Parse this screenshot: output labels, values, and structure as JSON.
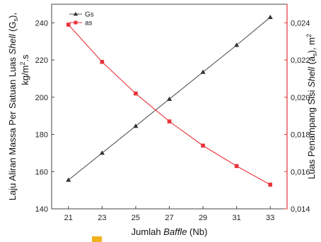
{
  "chart_data": {
    "type": "line",
    "x": [
      21,
      23,
      25,
      27,
      29,
      31,
      33
    ],
    "xlabel": {
      "prefix": "Jumlah ",
      "italic": "Baffle",
      "suffix": " (Nb)"
    },
    "xlim": [
      20,
      34
    ],
    "xticks": [
      "21",
      "23",
      "25",
      "27",
      "29",
      "31",
      "33"
    ],
    "ylabel_left": {
      "line1": {
        "a": "Laju Aliran Massa Per Satuan Luas ",
        "italic": "Shell",
        "b": " (G",
        "sub": "s",
        "c": "),"
      },
      "line2": {
        "a": "kg/m",
        "sup": "2",
        "b": ".s"
      }
    },
    "ylim_left": [
      140,
      250
    ],
    "yticks_left": [
      "140",
      "160",
      "180",
      "200",
      "220",
      "240"
    ],
    "ylabel_right": {
      "a": "Luas Penampang Sisi ",
      "italic": "Shell",
      "b": " (a",
      "sub": "s",
      "c": "), m",
      "sup": "2"
    },
    "ylim_right": [
      0.014,
      0.025
    ],
    "yticks_right": [
      "0,014",
      "0,016",
      "0,018",
      "0,020",
      "0,022",
      "0,024"
    ],
    "series": [
      {
        "name": "Gs",
        "axis": "left",
        "color": "#555555",
        "marker": "triangle",
        "values": [
          155.5,
          170.0,
          184.5,
          199.0,
          213.5,
          228.0,
          243.0
        ]
      },
      {
        "name": "as",
        "axis": "right",
        "color": "#e8333a",
        "marker": "square",
        "values": [
          0.0239,
          0.0219,
          0.0202,
          0.0187,
          0.0174,
          0.0163,
          0.0153
        ]
      }
    ],
    "grid": false,
    "legend_position": "top-left"
  },
  "accent_colors": {
    "right_axis": "#e8333a",
    "left_axis": "#222222",
    "badge": "#f0b21b"
  }
}
